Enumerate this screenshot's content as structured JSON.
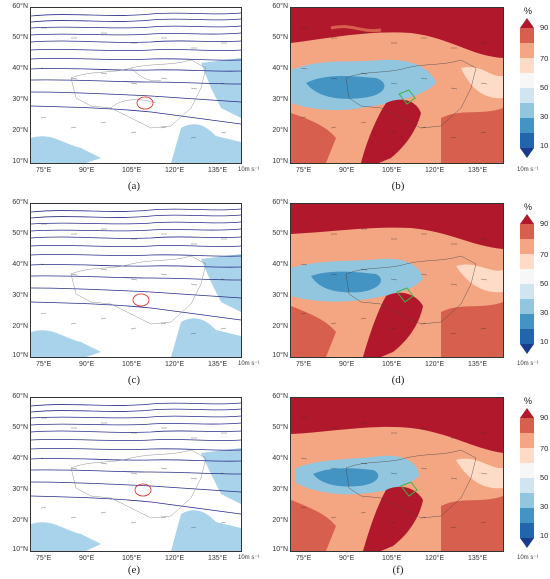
{
  "figure": {
    "panels": [
      {
        "id": "a",
        "label": "(a)",
        "kind": "height-wind"
      },
      {
        "id": "b",
        "label": "(b)",
        "kind": "humidity"
      },
      {
        "id": "c",
        "label": "(c)",
        "kind": "height-wind"
      },
      {
        "id": "d",
        "label": "(d)",
        "kind": "humidity"
      },
      {
        "id": "e",
        "label": "(e)",
        "kind": "height-wind"
      },
      {
        "id": "f",
        "label": "(f)",
        "kind": "humidity"
      }
    ],
    "lat_ticks": [
      "60°N",
      "50°N",
      "40°N",
      "30°N",
      "20°N",
      "10°N"
    ],
    "lon_ticks": [
      "75°E",
      "90°E",
      "105°E",
      "120°E",
      "135°E"
    ],
    "vector_ref": "10m s⁻¹",
    "contour_labels": [
      "5200",
      "5300",
      "5400",
      "5500",
      "5600",
      "5700",
      "5800",
      "5900"
    ],
    "colorbar": {
      "unit": "%",
      "ticks": [
        "90",
        "70",
        "50",
        "30",
        "10"
      ],
      "colors": [
        "#b2182b",
        "#d6604d",
        "#f4a582",
        "#fddbc7",
        "#f7f7f7",
        "#d1e5f0",
        "#92c5de",
        "#4393c3",
        "#2166ac",
        "#1a3a8c"
      ]
    },
    "colors": {
      "contour": "#2b2f8a",
      "ocean": "#a9d3ea",
      "basin_outline": "#e0201c",
      "region_outline": "#39b54a"
    }
  }
}
